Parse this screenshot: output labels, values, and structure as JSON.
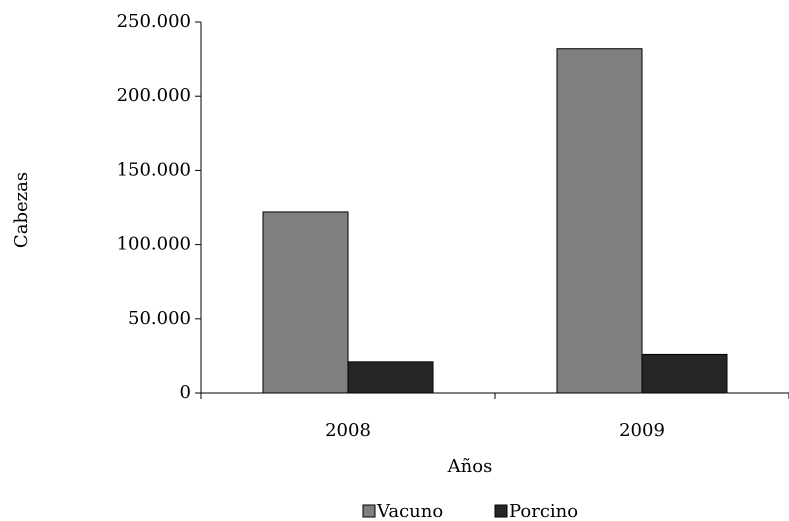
{
  "chart_data": {
    "type": "bar",
    "categories": [
      "2008",
      "2009"
    ],
    "series": [
      {
        "name": "Vacuno",
        "color": "#808080",
        "values": [
          122000,
          232000
        ]
      },
      {
        "name": "Porcino",
        "color": "#262626",
        "values": [
          21000,
          26000
        ]
      }
    ],
    "xlabel": "Años",
    "ylabel": "Cabezas",
    "ylim": [
      0,
      250000
    ],
    "yticks": [
      0,
      {
        "value": 50000,
        "label": "50.000"
      },
      {
        "value": 100000,
        "label": "100.000"
      },
      {
        "value": 150000,
        "label": "150.000"
      },
      {
        "value": 200000,
        "label": "200.000"
      },
      {
        "value": 250000,
        "label": "250.000"
      }
    ],
    "grid": false,
    "legend": "bottom"
  }
}
